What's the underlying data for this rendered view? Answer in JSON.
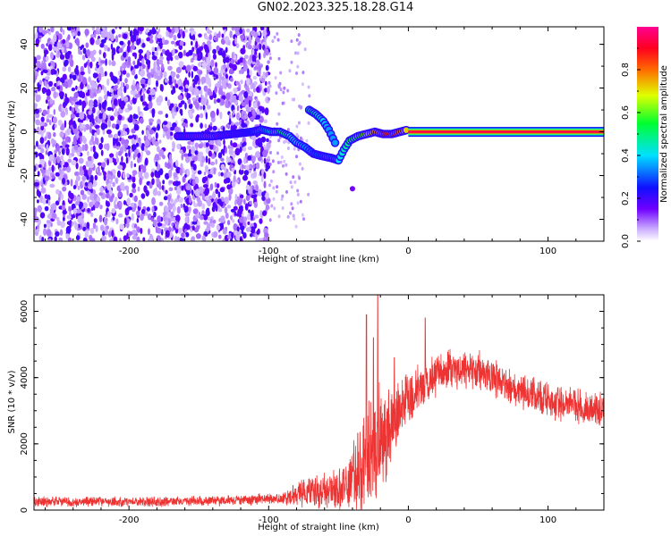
{
  "figure_title": "GN02.2023.325.18.28.G14",
  "chart_data": [
    {
      "type": "heatmap",
      "title": "",
      "xlabel": "Height of straight line (km)",
      "ylabel": "Frequency (Hz)",
      "xlim": [
        -268,
        140
      ],
      "ylim": [
        -50,
        48
      ],
      "xticks": [
        -200,
        -100,
        0,
        100
      ],
      "yticks": [
        -40,
        -20,
        0,
        20,
        40
      ],
      "colorbar": {
        "label": "Normalized spectral amplitude",
        "range": [
          0,
          1
        ],
        "ticks": [
          0.0,
          0.2,
          0.4,
          0.6,
          0.8
        ],
        "colormap": "rainbow (white to violet to blue to cyan to green to yellow to red to magenta)"
      },
      "regions": [
        {
          "name": "noise",
          "x_range": [
            -268,
            -100
          ],
          "y_range": [
            -50,
            48
          ],
          "amplitude": 0.12
        },
        {
          "name": "sparse",
          "x_range": [
            -100,
            -70
          ],
          "y_range": [
            -45,
            45
          ],
          "amplitude": 0.05
        }
      ],
      "ridge": [
        {
          "x": -165,
          "y": -2,
          "amp": 0.15
        },
        {
          "x": -140,
          "y": -2,
          "amp": 0.12
        },
        {
          "x": -112,
          "y": 0,
          "amp": 0.25
        },
        {
          "x": -105,
          "y": 1,
          "amp": 0.35
        },
        {
          "x": -98,
          "y": 0,
          "amp": 0.4
        },
        {
          "x": -92,
          "y": 0,
          "amp": 0.5
        },
        {
          "x": -85,
          "y": -2,
          "amp": 0.45
        },
        {
          "x": -80,
          "y": -5,
          "amp": 0.4
        },
        {
          "x": -74,
          "y": -7,
          "amp": 0.35
        },
        {
          "x": -68,
          "y": -10,
          "amp": 0.3
        },
        {
          "x": -62,
          "y": -11,
          "amp": 0.3
        },
        {
          "x": -55,
          "y": -12,
          "amp": 0.35
        },
        {
          "x": -50,
          "y": -13,
          "amp": 0.4
        },
        {
          "x": -46,
          "y": -8,
          "amp": 0.45
        },
        {
          "x": -42,
          "y": -4,
          "amp": 0.5
        },
        {
          "x": -36,
          "y": -2,
          "amp": 0.55
        },
        {
          "x": -30,
          "y": -1,
          "amp": 0.65
        },
        {
          "x": -24,
          "y": 0,
          "amp": 0.75
        },
        {
          "x": -18,
          "y": -1,
          "amp": 0.85
        },
        {
          "x": -12,
          "y": -1,
          "amp": 0.85
        },
        {
          "x": -6,
          "y": 0,
          "amp": 0.8
        },
        {
          "x": 0,
          "y": 1,
          "amp": 0.7
        }
      ],
      "branch": [
        {
          "x": -71,
          "y": 10,
          "amp": 0.45
        },
        {
          "x": -66,
          "y": 8,
          "amp": 0.45
        },
        {
          "x": -61,
          "y": 5,
          "amp": 0.4
        },
        {
          "x": -57,
          "y": 1,
          "amp": 0.35
        },
        {
          "x": -54,
          "y": -3,
          "amp": 0.35
        },
        {
          "x": -51,
          "y": -7,
          "amp": 0.35
        }
      ],
      "outlier": {
        "x": -40,
        "y": -26,
        "amp": 0.15
      },
      "tone": {
        "x_range": [
          0,
          140
        ],
        "y": 0,
        "amp": 0.9
      }
    },
    {
      "type": "line",
      "title": "",
      "xlabel": "Height of straight line (km)",
      "ylabel": "SNR (10 * v/v)",
      "xlim": [
        -268,
        140
      ],
      "ylim": [
        0,
        6500
      ],
      "xticks": [
        -200,
        -100,
        0,
        100
      ],
      "yticks": [
        0,
        2000,
        4000,
        6000
      ],
      "color": "#ee3333",
      "envelope": [
        {
          "x": -268,
          "y": 250,
          "noise": 180
        },
        {
          "x": -160,
          "y": 260,
          "noise": 180
        },
        {
          "x": -120,
          "y": 300,
          "noise": 180
        },
        {
          "x": -90,
          "y": 350,
          "noise": 220
        },
        {
          "x": -70,
          "y": 550,
          "noise": 550
        },
        {
          "x": -55,
          "y": 600,
          "noise": 750
        },
        {
          "x": -45,
          "y": 700,
          "noise": 800
        },
        {
          "x": -35,
          "y": 1200,
          "noise": 1600
        },
        {
          "x": -25,
          "y": 1800,
          "noise": 2200
        },
        {
          "x": -15,
          "y": 2400,
          "noise": 1600
        },
        {
          "x": -5,
          "y": 3100,
          "noise": 1100
        },
        {
          "x": 10,
          "y": 3800,
          "noise": 800
        },
        {
          "x": 30,
          "y": 4300,
          "noise": 700
        },
        {
          "x": 50,
          "y": 4200,
          "noise": 700
        },
        {
          "x": 70,
          "y": 3800,
          "noise": 650
        },
        {
          "x": 100,
          "y": 3300,
          "noise": 650
        },
        {
          "x": 140,
          "y": 3000,
          "noise": 600
        }
      ],
      "spikes": [
        {
          "x": -30,
          "y": 5900
        },
        {
          "x": -22,
          "y": 6500
        },
        {
          "x": -25,
          "y": 5200
        },
        {
          "x": 12,
          "y": 5800
        },
        {
          "x": -10,
          "y": 4600
        }
      ]
    }
  ]
}
